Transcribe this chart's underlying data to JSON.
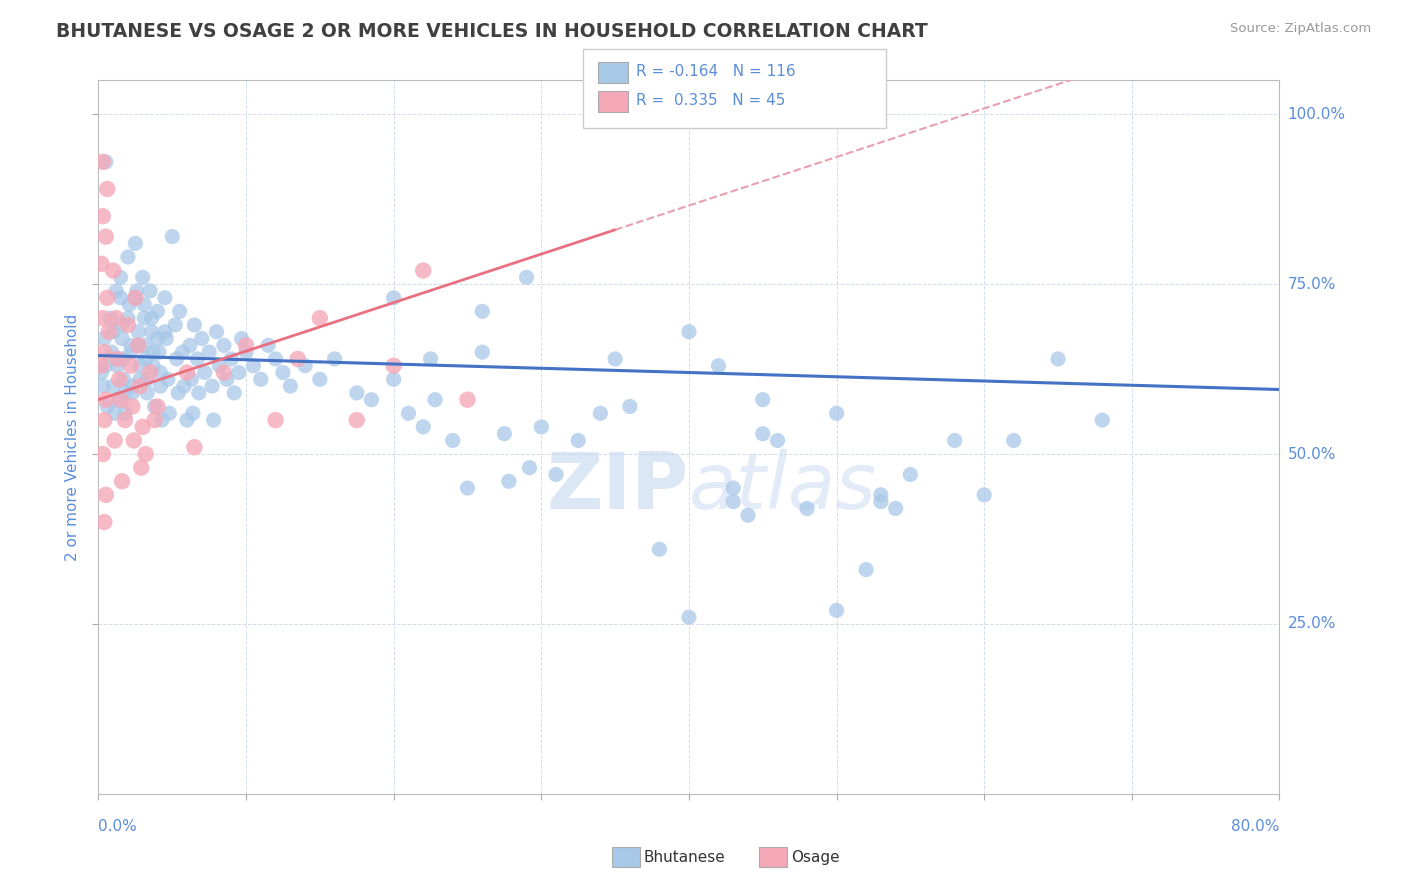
{
  "title": "BHUTANESE VS OSAGE 2 OR MORE VEHICLES IN HOUSEHOLD CORRELATION CHART",
  "source_text": "Source: ZipAtlas.com",
  "ylabel": "2 or more Vehicles in Household",
  "xlim": [
    0.0,
    0.8
  ],
  "ylim": [
    0.0,
    1.05
  ],
  "y_tick_labels": [
    "25.0%",
    "50.0%",
    "75.0%",
    "100.0%"
  ],
  "y_tick_values": [
    0.25,
    0.5,
    0.75,
    1.0
  ],
  "blue_color": "#a8c8e8",
  "pink_color": "#f4a8b8",
  "blue_line_color": "#4472c4",
  "pink_line_color": "#e87080",
  "pink_dash_color": "#e8a0b0",
  "watermark_zip": "ZIP",
  "watermark_atlas": "atlas",
  "background_color": "#ffffff",
  "grid_color": "#c8d4e8",
  "title_color": "#404040",
  "axis_label_color": "#5b8dd9",
  "bhutanese_points": [
    [
      0.005,
      0.93
    ],
    [
      0.002,
      0.62
    ],
    [
      0.003,
      0.6
    ],
    [
      0.004,
      0.67
    ],
    [
      0.005,
      0.63
    ],
    [
      0.006,
      0.57
    ],
    [
      0.008,
      0.7
    ],
    [
      0.009,
      0.65
    ],
    [
      0.01,
      0.6
    ],
    [
      0.011,
      0.56
    ],
    [
      0.01,
      0.68
    ],
    [
      0.012,
      0.74
    ],
    [
      0.013,
      0.63
    ],
    [
      0.014,
      0.58
    ],
    [
      0.015,
      0.76
    ],
    [
      0.016,
      0.69
    ],
    [
      0.017,
      0.64
    ],
    [
      0.018,
      0.59
    ],
    [
      0.015,
      0.73
    ],
    [
      0.016,
      0.67
    ],
    [
      0.017,
      0.61
    ],
    [
      0.018,
      0.56
    ],
    [
      0.02,
      0.79
    ],
    [
      0.021,
      0.72
    ],
    [
      0.022,
      0.66
    ],
    [
      0.023,
      0.6
    ],
    [
      0.02,
      0.7
    ],
    [
      0.022,
      0.65
    ],
    [
      0.023,
      0.59
    ],
    [
      0.025,
      0.81
    ],
    [
      0.026,
      0.74
    ],
    [
      0.027,
      0.68
    ],
    [
      0.028,
      0.63
    ],
    [
      0.025,
      0.73
    ],
    [
      0.027,
      0.66
    ],
    [
      0.028,
      0.61
    ],
    [
      0.03,
      0.76
    ],
    [
      0.031,
      0.7
    ],
    [
      0.032,
      0.64
    ],
    [
      0.033,
      0.59
    ],
    [
      0.031,
      0.72
    ],
    [
      0.032,
      0.66
    ],
    [
      0.033,
      0.61
    ],
    [
      0.035,
      0.74
    ],
    [
      0.036,
      0.68
    ],
    [
      0.037,
      0.63
    ],
    [
      0.038,
      0.57
    ],
    [
      0.036,
      0.7
    ],
    [
      0.037,
      0.65
    ],
    [
      0.04,
      0.71
    ],
    [
      0.041,
      0.65
    ],
    [
      0.042,
      0.6
    ],
    [
      0.043,
      0.55
    ],
    [
      0.04,
      0.67
    ],
    [
      0.042,
      0.62
    ],
    [
      0.045,
      0.73
    ],
    [
      0.046,
      0.67
    ],
    [
      0.047,
      0.61
    ],
    [
      0.048,
      0.56
    ],
    [
      0.045,
      0.68
    ],
    [
      0.05,
      0.82
    ],
    [
      0.052,
      0.69
    ],
    [
      0.053,
      0.64
    ],
    [
      0.054,
      0.59
    ],
    [
      0.055,
      0.71
    ],
    [
      0.057,
      0.65
    ],
    [
      0.058,
      0.6
    ],
    [
      0.06,
      0.55
    ],
    [
      0.062,
      0.66
    ],
    [
      0.063,
      0.61
    ],
    [
      0.064,
      0.56
    ],
    [
      0.065,
      0.69
    ],
    [
      0.067,
      0.64
    ],
    [
      0.068,
      0.59
    ],
    [
      0.07,
      0.67
    ],
    [
      0.072,
      0.62
    ],
    [
      0.075,
      0.65
    ],
    [
      0.077,
      0.6
    ],
    [
      0.078,
      0.55
    ],
    [
      0.08,
      0.68
    ],
    [
      0.082,
      0.63
    ],
    [
      0.085,
      0.66
    ],
    [
      0.087,
      0.61
    ],
    [
      0.09,
      0.64
    ],
    [
      0.092,
      0.59
    ],
    [
      0.095,
      0.62
    ],
    [
      0.097,
      0.67
    ],
    [
      0.1,
      0.65
    ],
    [
      0.105,
      0.63
    ],
    [
      0.11,
      0.61
    ],
    [
      0.115,
      0.66
    ],
    [
      0.12,
      0.64
    ],
    [
      0.125,
      0.62
    ],
    [
      0.13,
      0.6
    ],
    [
      0.14,
      0.63
    ],
    [
      0.15,
      0.61
    ],
    [
      0.16,
      0.64
    ],
    [
      0.175,
      0.59
    ],
    [
      0.185,
      0.58
    ],
    [
      0.2,
      0.73
    ],
    [
      0.2,
      0.61
    ],
    [
      0.21,
      0.56
    ],
    [
      0.22,
      0.54
    ],
    [
      0.225,
      0.64
    ],
    [
      0.228,
      0.58
    ],
    [
      0.24,
      0.52
    ],
    [
      0.25,
      0.45
    ],
    [
      0.26,
      0.71
    ],
    [
      0.26,
      0.65
    ],
    [
      0.275,
      0.53
    ],
    [
      0.278,
      0.46
    ],
    [
      0.29,
      0.76
    ],
    [
      0.292,
      0.48
    ],
    [
      0.3,
      0.54
    ],
    [
      0.31,
      0.47
    ],
    [
      0.325,
      0.52
    ],
    [
      0.34,
      0.56
    ],
    [
      0.35,
      0.64
    ],
    [
      0.36,
      0.57
    ],
    [
      0.4,
      0.68
    ],
    [
      0.42,
      0.63
    ],
    [
      0.43,
      0.45
    ],
    [
      0.45,
      0.58
    ],
    [
      0.48,
      0.42
    ],
    [
      0.5,
      0.56
    ],
    [
      0.53,
      0.44
    ],
    [
      0.55,
      0.47
    ],
    [
      0.58,
      0.52
    ],
    [
      0.6,
      0.44
    ],
    [
      0.62,
      0.52
    ],
    [
      0.65,
      0.64
    ],
    [
      0.68,
      0.55
    ],
    [
      0.5,
      0.27
    ],
    [
      0.52,
      0.33
    ],
    [
      0.53,
      0.43
    ],
    [
      0.54,
      0.42
    ],
    [
      0.38,
      0.36
    ],
    [
      0.4,
      0.26
    ],
    [
      0.43,
      0.43
    ],
    [
      0.44,
      0.41
    ],
    [
      0.45,
      0.53
    ],
    [
      0.46,
      0.52
    ]
  ],
  "osage_points": [
    [
      0.002,
      0.78
    ],
    [
      0.003,
      0.7
    ],
    [
      0.004,
      0.65
    ],
    [
      0.005,
      0.58
    ],
    [
      0.006,
      0.73
    ],
    [
      0.003,
      0.85
    ],
    [
      0.004,
      0.55
    ],
    [
      0.002,
      0.63
    ],
    [
      0.003,
      0.5
    ],
    [
      0.005,
      0.82
    ],
    [
      0.007,
      0.68
    ],
    [
      0.005,
      0.44
    ],
    [
      0.004,
      0.4
    ],
    [
      0.01,
      0.77
    ],
    [
      0.012,
      0.7
    ],
    [
      0.013,
      0.64
    ],
    [
      0.015,
      0.58
    ],
    [
      0.011,
      0.52
    ],
    [
      0.016,
      0.46
    ],
    [
      0.014,
      0.61
    ],
    [
      0.018,
      0.55
    ],
    [
      0.02,
      0.69
    ],
    [
      0.022,
      0.63
    ],
    [
      0.023,
      0.57
    ],
    [
      0.024,
      0.52
    ],
    [
      0.025,
      0.73
    ],
    [
      0.027,
      0.66
    ],
    [
      0.028,
      0.6
    ],
    [
      0.03,
      0.54
    ],
    [
      0.029,
      0.48
    ],
    [
      0.032,
      0.5
    ],
    [
      0.035,
      0.62
    ],
    [
      0.038,
      0.55
    ],
    [
      0.04,
      0.57
    ],
    [
      0.06,
      0.62
    ],
    [
      0.065,
      0.51
    ],
    [
      0.085,
      0.62
    ],
    [
      0.1,
      0.66
    ],
    [
      0.12,
      0.55
    ],
    [
      0.135,
      0.64
    ],
    [
      0.15,
      0.7
    ],
    [
      0.175,
      0.55
    ],
    [
      0.2,
      0.63
    ],
    [
      0.22,
      0.77
    ],
    [
      0.25,
      0.58
    ],
    [
      0.003,
      0.93
    ],
    [
      0.006,
      0.89
    ]
  ]
}
